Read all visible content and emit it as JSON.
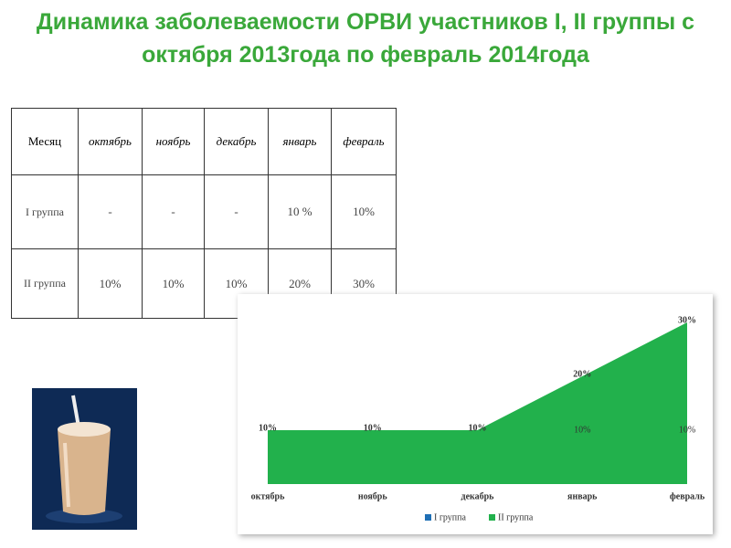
{
  "title": "Динамика заболеваемости ОРВИ участников I, II группы с октября 2013года по февраль 2014года",
  "table": {
    "header": [
      "Месяц",
      "октябрь",
      "ноябрь",
      "декабрь",
      "январь",
      "февраль"
    ],
    "rows": [
      [
        "I группа",
        "-",
        "-",
        "-",
        "10 %",
        "10%"
      ],
      [
        "II группа",
        "10%",
        "10%",
        "10%",
        "20%",
        "30%"
      ]
    ]
  },
  "chart_data": {
    "type": "area",
    "categories": [
      "октябрь",
      "ноябрь",
      "декабрь",
      "январь",
      "февраль"
    ],
    "series": [
      {
        "name": "I группа",
        "color": "#1f6fb5",
        "values": [
          null,
          null,
          null,
          10,
          10
        ],
        "value_labels": [
          null,
          null,
          null,
          "10%",
          "10%"
        ]
      },
      {
        "name": "II группа",
        "color": "#22b14c",
        "values": [
          10,
          10,
          10,
          20,
          30
        ],
        "value_labels": [
          "10%",
          "10%",
          "10%",
          "20%",
          "30%"
        ]
      }
    ],
    "legend": "bottom"
  }
}
